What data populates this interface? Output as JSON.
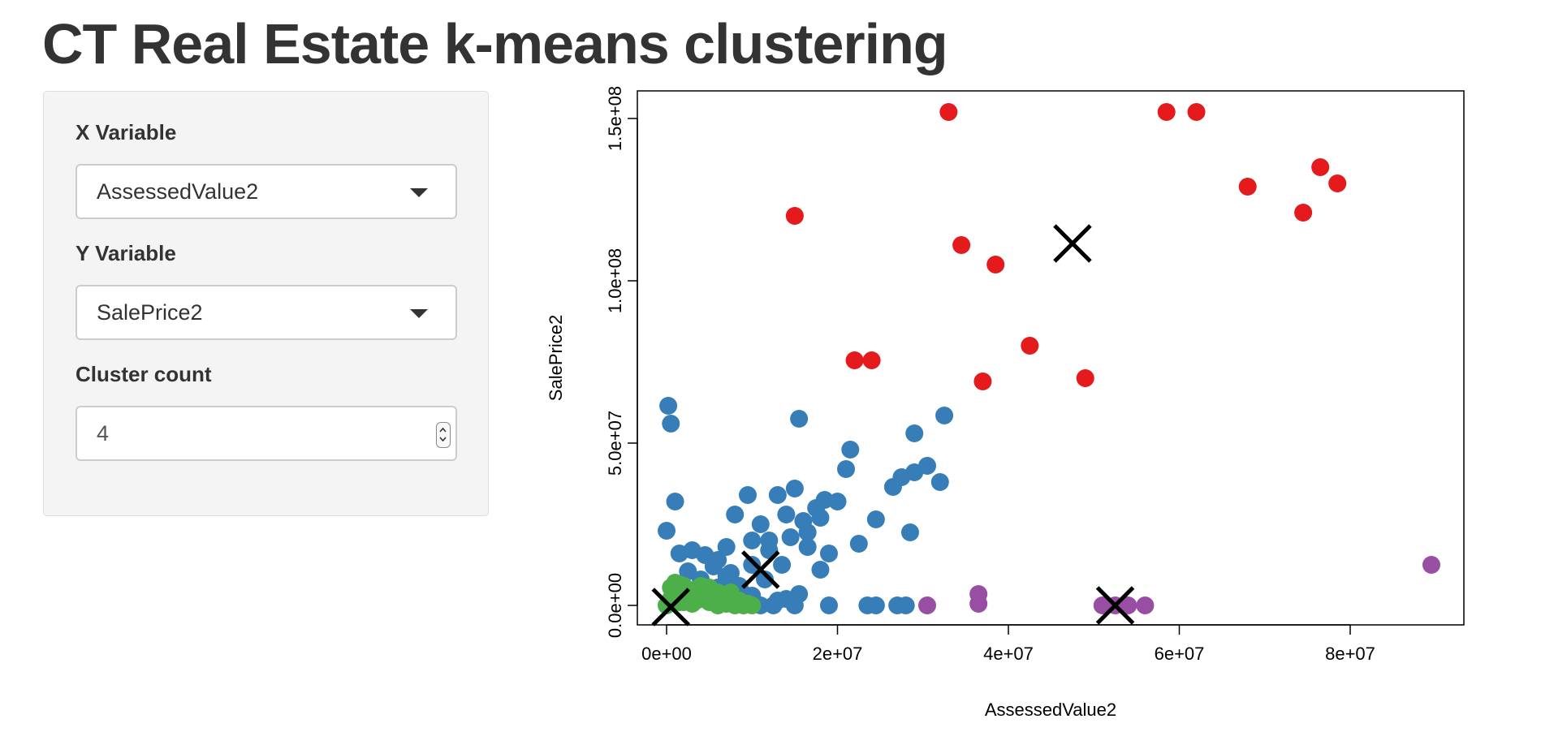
{
  "header": {
    "title": "CT Real Estate k-means clustering"
  },
  "controls": {
    "x_label": "X Variable",
    "x_value": "AssessedValue2",
    "y_label": "Y Variable",
    "y_value": "SalePrice2",
    "count_label": "Cluster count",
    "count_value": "4"
  },
  "colors": {
    "cluster_red": "#E41A1C",
    "cluster_blue": "#377EB8",
    "cluster_green": "#4DAF4A",
    "cluster_purple": "#984EA3",
    "center_marker": "#000000"
  },
  "chart_data": {
    "type": "scatter",
    "title": "",
    "xlabel": "AssessedValue2",
    "ylabel": "SalePrice2",
    "xlim": [
      -5000000,
      92000000
    ],
    "ylim": [
      -6000000,
      158000000
    ],
    "x_ticks": [
      0,
      20000000,
      40000000,
      60000000,
      80000000
    ],
    "x_tick_labels": [
      "0e+00",
      "2e+07",
      "4e+07",
      "6e+07",
      "8e+07"
    ],
    "y_ticks": [
      0,
      50000000,
      100000000,
      150000000
    ],
    "y_tick_labels": [
      "0.0e+00",
      "5.0e+07",
      "1.0e+08",
      "1.5e+08"
    ],
    "grid": false,
    "series": [
      {
        "color": "#E41A1C",
        "points": [
          [
            33000000,
            152000000
          ],
          [
            58500000,
            152000000
          ],
          [
            62000000,
            152000000
          ],
          [
            15000000,
            120000000
          ],
          [
            34500000,
            111000000
          ],
          [
            38500000,
            105000000
          ],
          [
            68000000,
            129000000
          ],
          [
            74500000,
            121000000
          ],
          [
            76500000,
            135000000
          ],
          [
            78500000,
            130000000
          ],
          [
            22000000,
            75500000
          ],
          [
            24000000,
            75500000
          ],
          [
            42500000,
            80000000
          ],
          [
            37000000,
            69000000
          ],
          [
            49000000,
            70000000
          ]
        ]
      },
      {
        "color": "#377EB8",
        "points": [
          [
            200000,
            61500000
          ],
          [
            500000,
            56000000
          ],
          [
            1000000,
            32000000
          ],
          [
            0,
            23000000
          ],
          [
            1500000,
            16000000
          ],
          [
            3000000,
            17000000
          ],
          [
            4500000,
            15500000
          ],
          [
            6000000,
            14000000
          ],
          [
            7000000,
            18000000
          ],
          [
            8000000,
            28000000
          ],
          [
            9500000,
            34000000
          ],
          [
            10000000,
            20000000
          ],
          [
            11000000,
            25000000
          ],
          [
            12000000,
            17000000
          ],
          [
            13000000,
            34000000
          ],
          [
            14000000,
            28000000
          ],
          [
            14500000,
            21000000
          ],
          [
            15000000,
            36000000
          ],
          [
            15500000,
            57500000
          ],
          [
            16000000,
            26000000
          ],
          [
            16500000,
            18000000
          ],
          [
            17500000,
            30000000
          ],
          [
            18500000,
            32500000
          ],
          [
            18000000,
            27000000
          ],
          [
            19000000,
            16000000
          ],
          [
            18000000,
            11000000
          ],
          [
            20000000,
            32000000
          ],
          [
            21000000,
            42000000
          ],
          [
            21500000,
            48000000
          ],
          [
            22500000,
            19000000
          ],
          [
            24500000,
            26500000
          ],
          [
            26500000,
            36500000
          ],
          [
            27500000,
            39500000
          ],
          [
            29000000,
            41000000
          ],
          [
            30500000,
            43000000
          ],
          [
            28500000,
            22500000
          ],
          [
            29000000,
            53000000
          ],
          [
            32500000,
            58500000
          ],
          [
            32000000,
            38000000
          ],
          [
            13500000,
            12500000
          ],
          [
            11500000,
            8000000
          ],
          [
            8500000,
            6000000
          ],
          [
            7500000,
            10000000
          ],
          [
            10000000,
            12500000
          ],
          [
            4000000,
            8000000
          ],
          [
            14000000,
            2000000
          ],
          [
            15500000,
            3500000
          ],
          [
            15000000,
            0
          ],
          [
            19000000,
            0
          ],
          [
            23500000,
            0
          ],
          [
            24500000,
            0
          ],
          [
            27000000,
            0
          ],
          [
            28000000,
            0
          ],
          [
            12500000,
            0
          ],
          [
            11000000,
            0
          ],
          [
            13000000,
            1500000
          ],
          [
            10000000,
            3000000
          ],
          [
            9000000,
            3500000
          ],
          [
            16500000,
            22500000
          ],
          [
            12000000,
            20000000
          ],
          [
            5500000,
            12000000
          ],
          [
            7000000,
            9000000
          ],
          [
            2500000,
            10500000
          ],
          [
            6000000,
            5500000
          ]
        ]
      },
      {
        "color": "#4DAF4A",
        "points": [
          [
            0,
            0
          ],
          [
            500000,
            2000000
          ],
          [
            1000000,
            4000000
          ],
          [
            1500000,
            1000000
          ],
          [
            2000000,
            6000000
          ],
          [
            2500000,
            3000000
          ],
          [
            3000000,
            500000
          ],
          [
            3500000,
            5000000
          ],
          [
            4000000,
            2000000
          ],
          [
            4500000,
            4500000
          ],
          [
            5000000,
            1000000
          ],
          [
            5500000,
            3500000
          ],
          [
            6000000,
            0
          ],
          [
            6500000,
            2500000
          ],
          [
            7000000,
            500000
          ],
          [
            7500000,
            2000000
          ],
          [
            8000000,
            0
          ],
          [
            8500000,
            1500000
          ],
          [
            9000000,
            0
          ],
          [
            9500000,
            500000
          ],
          [
            10000000,
            0
          ],
          [
            1000000,
            7000000
          ],
          [
            2000000,
            1000000
          ],
          [
            3000000,
            3500000
          ],
          [
            4000000,
            6000000
          ],
          [
            5000000,
            5500000
          ],
          [
            6000000,
            4000000
          ],
          [
            500000,
            5500000
          ],
          [
            1500000,
            6500000
          ],
          [
            3500000,
            1500000
          ],
          [
            5500000,
            2000000
          ],
          [
            7500000,
            4000000
          ]
        ]
      },
      {
        "color": "#984EA3",
        "points": [
          [
            30500000,
            0
          ],
          [
            36500000,
            3500000
          ],
          [
            36500000,
            500000
          ],
          [
            51000000,
            0
          ],
          [
            52500000,
            0
          ],
          [
            54000000,
            0
          ],
          [
            56000000,
            0
          ],
          [
            89500000,
            12500000
          ]
        ]
      }
    ],
    "centers": [
      [
        500000,
        -500000
      ],
      [
        11000000,
        11000000
      ],
      [
        47500000,
        111500000
      ],
      [
        52500000,
        0
      ]
    ]
  }
}
